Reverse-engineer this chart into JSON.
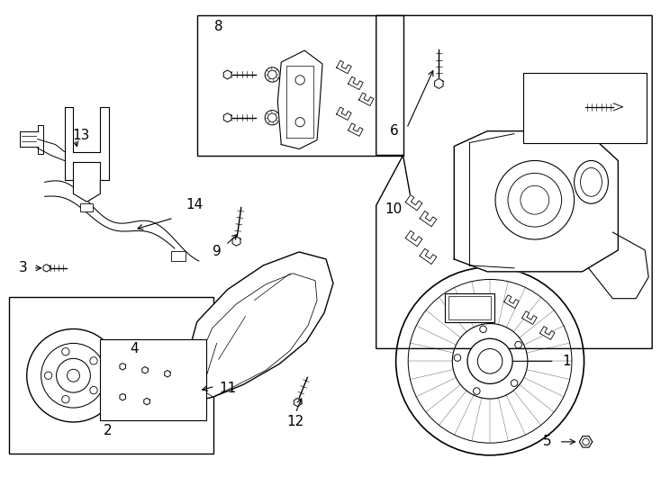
{
  "bg_color": "#ffffff",
  "line_color": "#000000",
  "figsize": [
    7.34,
    5.4
  ],
  "dpi": 100
}
